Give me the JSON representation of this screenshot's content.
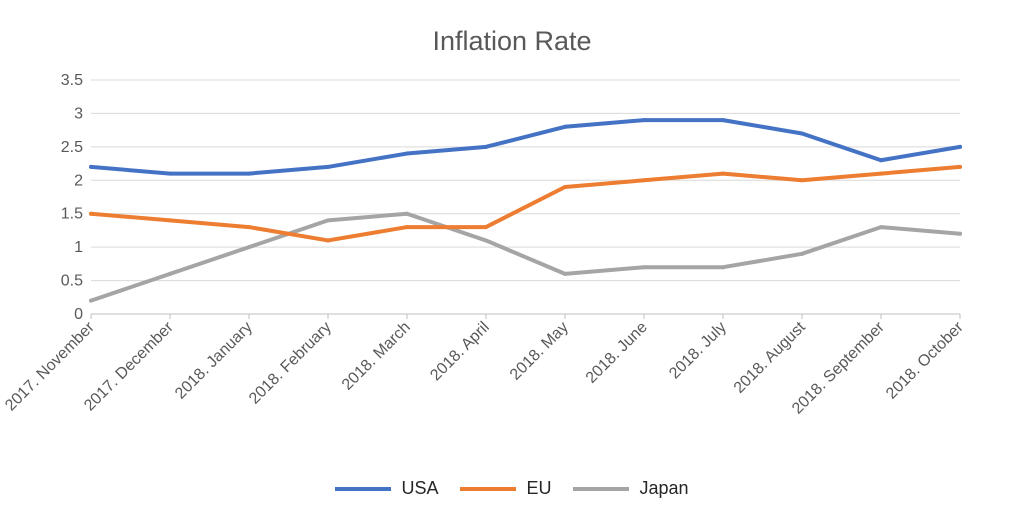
{
  "chart_data": {
    "type": "line",
    "title": "Inflation Rate",
    "xlabel": "",
    "ylabel": "",
    "categories": [
      "2017. November",
      "2017. December",
      "2018. January",
      "2018. February",
      "2018. March",
      "2018. April",
      "2018. May",
      "2018. June",
      "2018. July",
      "2018. August",
      "2018. September",
      "2018. October"
    ],
    "ylim": [
      0,
      3.5
    ],
    "yticks": [
      "0",
      "0.5",
      "1",
      "1.5",
      "2",
      "2.5",
      "3",
      "3.5"
    ],
    "grid": true,
    "legend_position": "bottom",
    "series": [
      {
        "name": "USA",
        "color": "#4472C4",
        "values": [
          2.2,
          2.1,
          2.1,
          2.2,
          2.4,
          2.5,
          2.8,
          2.9,
          2.9,
          2.7,
          2.3,
          2.5
        ]
      },
      {
        "name": "EU",
        "color": "#ED7D31",
        "values": [
          1.5,
          1.4,
          1.3,
          1.1,
          1.3,
          1.3,
          1.9,
          2.0,
          2.1,
          2.0,
          2.1,
          2.2
        ]
      },
      {
        "name": "Japan",
        "color": "#A5A5A5",
        "values": [
          0.2,
          0.6,
          1.0,
          1.4,
          1.5,
          1.1,
          0.6,
          0.7,
          0.7,
          0.9,
          1.3,
          1.2
        ]
      }
    ]
  }
}
